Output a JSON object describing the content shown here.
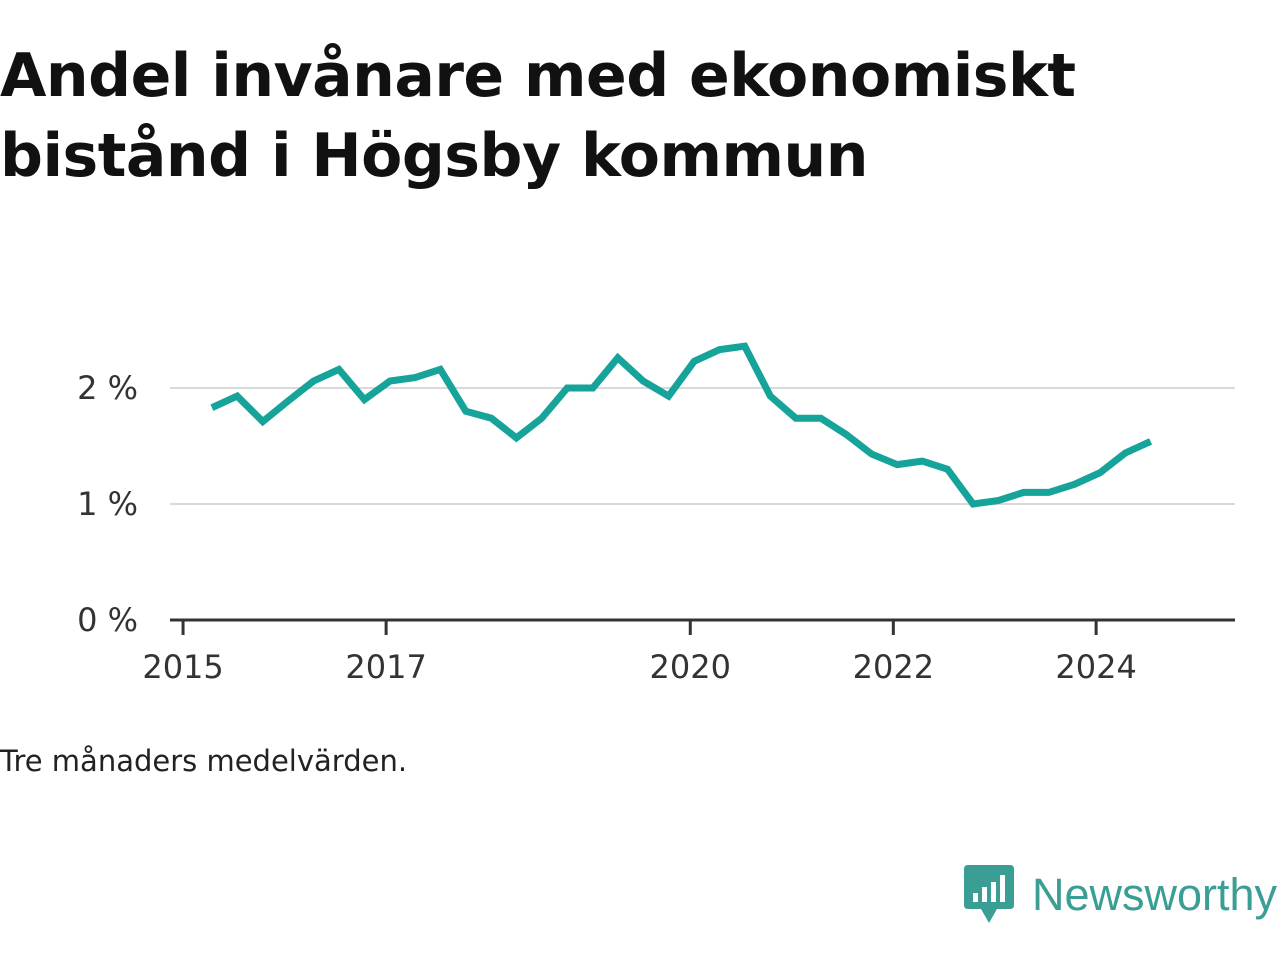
{
  "title": "Andel invånare med ekonomiskt bistånd i Högsby kommun",
  "note": "Tre månaders medelvärden.",
  "brand": {
    "name": "Newsworthy",
    "color": "#3a9e94"
  },
  "colors": {
    "line": "#15a39a",
    "grid": "#d9d9d9",
    "axis": "#333333"
  },
  "chart_data": {
    "type": "line",
    "title": "Andel invånare med ekonomiskt bistånd i Högsby kommun",
    "xlabel": "",
    "ylabel": "",
    "x_ticks": [
      "2015",
      "2017",
      "2020",
      "2022",
      "2024"
    ],
    "y_ticks": [
      {
        "value": 0,
        "label": "0 %"
      },
      {
        "value": 1,
        "label": "1 %"
      },
      {
        "value": 2,
        "label": "2 %"
      }
    ],
    "xlim": [
      "2014-11-15",
      "2025-05-15"
    ],
    "ylim": [
      0,
      2.3
    ],
    "grid": true,
    "legend": "none",
    "series": [
      {
        "points": [
          {
            "x": "2015-04-15",
            "y": 1.83
          },
          {
            "x": "2015-07-15",
            "y": 1.93
          },
          {
            "x": "2015-10-15",
            "y": 1.71
          },
          {
            "x": "2016-01-15",
            "y": 1.89
          },
          {
            "x": "2016-04-15",
            "y": 2.06
          },
          {
            "x": "2016-07-15",
            "y": 2.16
          },
          {
            "x": "2016-10-15",
            "y": 1.9
          },
          {
            "x": "2017-01-15",
            "y": 2.06
          },
          {
            "x": "2017-04-15",
            "y": 2.09
          },
          {
            "x": "2017-07-15",
            "y": 2.16
          },
          {
            "x": "2017-10-15",
            "y": 1.8
          },
          {
            "x": "2018-01-15",
            "y": 1.74
          },
          {
            "x": "2018-04-15",
            "y": 1.57
          },
          {
            "x": "2018-07-15",
            "y": 1.74
          },
          {
            "x": "2018-10-15",
            "y": 2.0
          },
          {
            "x": "2019-01-15",
            "y": 2.0
          },
          {
            "x": "2019-04-15",
            "y": 2.26
          },
          {
            "x": "2019-07-15",
            "y": 2.06
          },
          {
            "x": "2019-10-15",
            "y": 1.93
          },
          {
            "x": "2020-01-15",
            "y": 2.23
          },
          {
            "x": "2020-04-15",
            "y": 2.33
          },
          {
            "x": "2020-07-15",
            "y": 2.36
          },
          {
            "x": "2020-10-15",
            "y": 1.93
          },
          {
            "x": "2021-01-15",
            "y": 1.74
          },
          {
            "x": "2021-04-15",
            "y": 1.74
          },
          {
            "x": "2021-07-15",
            "y": 1.6
          },
          {
            "x": "2021-10-15",
            "y": 1.43
          },
          {
            "x": "2022-01-15",
            "y": 1.34
          },
          {
            "x": "2022-04-15",
            "y": 1.37
          },
          {
            "x": "2022-07-15",
            "y": 1.3
          },
          {
            "x": "2022-10-15",
            "y": 1.0
          },
          {
            "x": "2023-01-15",
            "y": 1.03
          },
          {
            "x": "2023-04-15",
            "y": 1.1
          },
          {
            "x": "2023-07-15",
            "y": 1.1
          },
          {
            "x": "2023-10-15",
            "y": 1.17
          },
          {
            "x": "2024-01-15",
            "y": 1.27
          },
          {
            "x": "2024-04-15",
            "y": 1.44
          },
          {
            "x": "2024-07-15",
            "y": 1.54
          }
        ]
      }
    ]
  }
}
